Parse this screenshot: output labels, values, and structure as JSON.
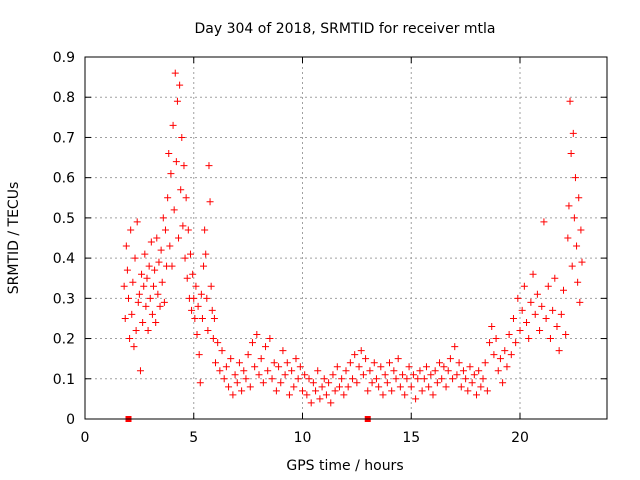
{
  "chart_data": {
    "type": "scatter",
    "title": "Day 304 of 2018, SRMTID for receiver mtla",
    "xlabel": "GPS time / hours",
    "ylabel": "SRMTID / TECUs",
    "xlim": [
      0,
      24
    ],
    "ylim": [
      0,
      0.9
    ],
    "grid": true,
    "x_ticks": [
      0,
      5,
      10,
      15,
      20
    ],
    "x_tick_labels": [
      "0",
      "5",
      "10",
      "15",
      "20"
    ],
    "y_ticks": [
      0,
      0.1,
      0.2,
      0.3,
      0.4,
      0.5,
      0.6,
      0.7,
      0.8,
      0.9
    ],
    "y_tick_labels": [
      "0",
      "0.1",
      "0.2",
      "0.3",
      "0.4",
      "0.5",
      "0.6",
      "0.7",
      "0.8",
      "0.9"
    ],
    "series_color": "#ff0000",
    "series": [
      {
        "name": "SRMTID",
        "marker": "plus",
        "points": [
          [
            1.8,
            0.33
          ],
          [
            1.85,
            0.25
          ],
          [
            1.9,
            0.43
          ],
          [
            1.95,
            0.37
          ],
          [
            2.0,
            0.3
          ],
          [
            2.05,
            0.2
          ],
          [
            2.1,
            0.47
          ],
          [
            2.15,
            0.26
          ],
          [
            2.2,
            0.34
          ],
          [
            2.25,
            0.18
          ],
          [
            2.3,
            0.4
          ],
          [
            2.35,
            0.22
          ],
          [
            2.4,
            0.49
          ],
          [
            2.45,
            0.29
          ],
          [
            2.5,
            0.31
          ],
          [
            2.55,
            0.12
          ],
          [
            2.6,
            0.36
          ],
          [
            2.65,
            0.24
          ],
          [
            2.7,
            0.33
          ],
          [
            2.75,
            0.41
          ],
          [
            2.8,
            0.28
          ],
          [
            2.85,
            0.35
          ],
          [
            2.9,
            0.22
          ],
          [
            2.95,
            0.38
          ],
          [
            3.0,
            0.3
          ],
          [
            3.05,
            0.44
          ],
          [
            3.1,
            0.26
          ],
          [
            3.15,
            0.33
          ],
          [
            3.2,
            0.37
          ],
          [
            3.25,
            0.24
          ],
          [
            3.3,
            0.45
          ],
          [
            3.35,
            0.31
          ],
          [
            3.4,
            0.39
          ],
          [
            3.45,
            0.28
          ],
          [
            3.5,
            0.42
          ],
          [
            3.55,
            0.34
          ],
          [
            3.6,
            0.5
          ],
          [
            3.65,
            0.29
          ],
          [
            3.7,
            0.47
          ],
          [
            3.75,
            0.38
          ],
          [
            3.8,
            0.55
          ],
          [
            3.85,
            0.66
          ],
          [
            3.9,
            0.43
          ],
          [
            3.95,
            0.61
          ],
          [
            4.0,
            0.38
          ],
          [
            4.05,
            0.73
          ],
          [
            4.1,
            0.52
          ],
          [
            4.15,
            0.86
          ],
          [
            4.2,
            0.64
          ],
          [
            4.25,
            0.79
          ],
          [
            4.3,
            0.45
          ],
          [
            4.35,
            0.83
          ],
          [
            4.4,
            0.57
          ],
          [
            4.45,
            0.7
          ],
          [
            4.5,
            0.48
          ],
          [
            4.55,
            0.63
          ],
          [
            4.6,
            0.4
          ],
          [
            4.65,
            0.55
          ],
          [
            4.7,
            0.35
          ],
          [
            4.75,
            0.47
          ],
          [
            4.8,
            0.3
          ],
          [
            4.85,
            0.41
          ],
          [
            4.9,
            0.27
          ],
          [
            4.95,
            0.36
          ],
          [
            5.0,
            0.3
          ],
          [
            5.05,
            0.25
          ],
          [
            5.1,
            0.33
          ],
          [
            5.15,
            0.21
          ],
          [
            5.2,
            0.28
          ],
          [
            5.25,
            0.16
          ],
          [
            5.3,
            0.09
          ],
          [
            5.35,
            0.31
          ],
          [
            5.4,
            0.25
          ],
          [
            5.45,
            0.38
          ],
          [
            5.5,
            0.47
          ],
          [
            5.55,
            0.41
          ],
          [
            5.6,
            0.3
          ],
          [
            5.65,
            0.22
          ],
          [
            5.7,
            0.63
          ],
          [
            5.75,
            0.54
          ],
          [
            5.8,
            0.33
          ],
          [
            5.85,
            0.27
          ],
          [
            5.9,
            0.2
          ],
          [
            5.95,
            0.25
          ],
          [
            6.0,
            0.14
          ],
          [
            6.1,
            0.19
          ],
          [
            6.2,
            0.12
          ],
          [
            6.3,
            0.17
          ],
          [
            6.4,
            0.1
          ],
          [
            6.5,
            0.13
          ],
          [
            6.6,
            0.08
          ],
          [
            6.7,
            0.15
          ],
          [
            6.8,
            0.06
          ],
          [
            6.9,
            0.11
          ],
          [
            7.0,
            0.09
          ],
          [
            7.1,
            0.14
          ],
          [
            7.2,
            0.07
          ],
          [
            7.3,
            0.12
          ],
          [
            7.4,
            0.1
          ],
          [
            7.5,
            0.16
          ],
          [
            7.6,
            0.08
          ],
          [
            7.7,
            0.19
          ],
          [
            7.8,
            0.13
          ],
          [
            7.9,
            0.21
          ],
          [
            8.0,
            0.11
          ],
          [
            8.1,
            0.15
          ],
          [
            8.2,
            0.09
          ],
          [
            8.3,
            0.18
          ],
          [
            8.4,
            0.12
          ],
          [
            8.5,
            0.2
          ],
          [
            8.6,
            0.1
          ],
          [
            8.7,
            0.14
          ],
          [
            8.8,
            0.07
          ],
          [
            8.9,
            0.13
          ],
          [
            9.0,
            0.09
          ],
          [
            9.1,
            0.17
          ],
          [
            9.2,
            0.11
          ],
          [
            9.3,
            0.14
          ],
          [
            9.4,
            0.06
          ],
          [
            9.5,
            0.12
          ],
          [
            9.6,
            0.08
          ],
          [
            9.7,
            0.15
          ],
          [
            9.8,
            0.1
          ],
          [
            9.9,
            0.13
          ],
          [
            10.0,
            0.07
          ],
          [
            10.1,
            0.11
          ],
          [
            10.2,
            0.06
          ],
          [
            10.3,
            0.1
          ],
          [
            10.4,
            0.04
          ],
          [
            10.5,
            0.09
          ],
          [
            10.6,
            0.07
          ],
          [
            10.7,
            0.12
          ],
          [
            10.8,
            0.05
          ],
          [
            10.9,
            0.08
          ],
          [
            11.0,
            0.1
          ],
          [
            11.1,
            0.06
          ],
          [
            11.2,
            0.09
          ],
          [
            11.3,
            0.04
          ],
          [
            11.4,
            0.11
          ],
          [
            11.5,
            0.07
          ],
          [
            11.6,
            0.13
          ],
          [
            11.7,
            0.08
          ],
          [
            11.8,
            0.1
          ],
          [
            11.9,
            0.06
          ],
          [
            12.0,
            0.12
          ],
          [
            12.1,
            0.08
          ],
          [
            12.2,
            0.14
          ],
          [
            12.3,
            0.1
          ],
          [
            12.4,
            0.16
          ],
          [
            12.5,
            0.09
          ],
          [
            12.6,
            0.13
          ],
          [
            12.7,
            0.17
          ],
          [
            12.8,
            0.11
          ],
          [
            12.9,
            0.15
          ],
          [
            13.0,
            0.07
          ],
          [
            13.1,
            0.12
          ],
          [
            13.2,
            0.09
          ],
          [
            13.3,
            0.14
          ],
          [
            13.4,
            0.1
          ],
          [
            13.5,
            0.08
          ],
          [
            13.6,
            0.13
          ],
          [
            13.7,
            0.06
          ],
          [
            13.8,
            0.11
          ],
          [
            13.9,
            0.09
          ],
          [
            14.0,
            0.14
          ],
          [
            14.1,
            0.07
          ],
          [
            14.2,
            0.12
          ],
          [
            14.3,
            0.1
          ],
          [
            14.4,
            0.15
          ],
          [
            14.5,
            0.08
          ],
          [
            14.6,
            0.11
          ],
          [
            14.7,
            0.06
          ],
          [
            14.8,
            0.1
          ],
          [
            14.9,
            0.13
          ],
          [
            15.0,
            0.08
          ],
          [
            15.1,
            0.11
          ],
          [
            15.2,
            0.05
          ],
          [
            15.3,
            0.1
          ],
          [
            15.4,
            0.12
          ],
          [
            15.5,
            0.07
          ],
          [
            15.6,
            0.1
          ],
          [
            15.7,
            0.13
          ],
          [
            15.8,
            0.08
          ],
          [
            15.9,
            0.11
          ],
          [
            16.0,
            0.06
          ],
          [
            16.1,
            0.12
          ],
          [
            16.2,
            0.09
          ],
          [
            16.3,
            0.14
          ],
          [
            16.4,
            0.1
          ],
          [
            16.5,
            0.13
          ],
          [
            16.6,
            0.08
          ],
          [
            16.7,
            0.12
          ],
          [
            16.8,
            0.15
          ],
          [
            16.9,
            0.1
          ],
          [
            17.0,
            0.18
          ],
          [
            17.1,
            0.11
          ],
          [
            17.2,
            0.14
          ],
          [
            17.3,
            0.08
          ],
          [
            17.4,
            0.12
          ],
          [
            17.5,
            0.1
          ],
          [
            17.6,
            0.07
          ],
          [
            17.7,
            0.13
          ],
          [
            17.8,
            0.09
          ],
          [
            17.9,
            0.11
          ],
          [
            18.0,
            0.06
          ],
          [
            18.1,
            0.12
          ],
          [
            18.2,
            0.08
          ],
          [
            18.3,
            0.1
          ],
          [
            18.4,
            0.14
          ],
          [
            18.5,
            0.07
          ],
          [
            18.6,
            0.19
          ],
          [
            18.7,
            0.23
          ],
          [
            18.8,
            0.16
          ],
          [
            18.9,
            0.2
          ],
          [
            19.0,
            0.12
          ],
          [
            19.1,
            0.15
          ],
          [
            19.2,
            0.09
          ],
          [
            19.3,
            0.17
          ],
          [
            19.4,
            0.13
          ],
          [
            19.5,
            0.21
          ],
          [
            19.6,
            0.16
          ],
          [
            19.7,
            0.25
          ],
          [
            19.8,
            0.19
          ],
          [
            19.9,
            0.3
          ],
          [
            20.0,
            0.22
          ],
          [
            20.1,
            0.27
          ],
          [
            20.2,
            0.33
          ],
          [
            20.3,
            0.24
          ],
          [
            20.4,
            0.2
          ],
          [
            20.5,
            0.29
          ],
          [
            20.6,
            0.36
          ],
          [
            20.7,
            0.26
          ],
          [
            20.8,
            0.31
          ],
          [
            20.9,
            0.22
          ],
          [
            21.0,
            0.28
          ],
          [
            21.1,
            0.49
          ],
          [
            21.2,
            0.25
          ],
          [
            21.3,
            0.33
          ],
          [
            21.4,
            0.2
          ],
          [
            21.5,
            0.27
          ],
          [
            21.6,
            0.35
          ],
          [
            21.7,
            0.23
          ],
          [
            21.8,
            0.17
          ],
          [
            21.9,
            0.26
          ],
          [
            22.0,
            0.32
          ],
          [
            22.1,
            0.21
          ],
          [
            22.2,
            0.45
          ],
          [
            22.25,
            0.53
          ],
          [
            22.3,
            0.79
          ],
          [
            22.35,
            0.66
          ],
          [
            22.4,
            0.38
          ],
          [
            22.45,
            0.71
          ],
          [
            22.5,
            0.5
          ],
          [
            22.55,
            0.6
          ],
          [
            22.6,
            0.43
          ],
          [
            22.65,
            0.34
          ],
          [
            22.7,
            0.55
          ],
          [
            22.75,
            0.29
          ],
          [
            22.8,
            0.47
          ],
          [
            22.85,
            0.39
          ]
        ]
      }
    ],
    "axis_markers": [
      2.0,
      13.0
    ]
  }
}
